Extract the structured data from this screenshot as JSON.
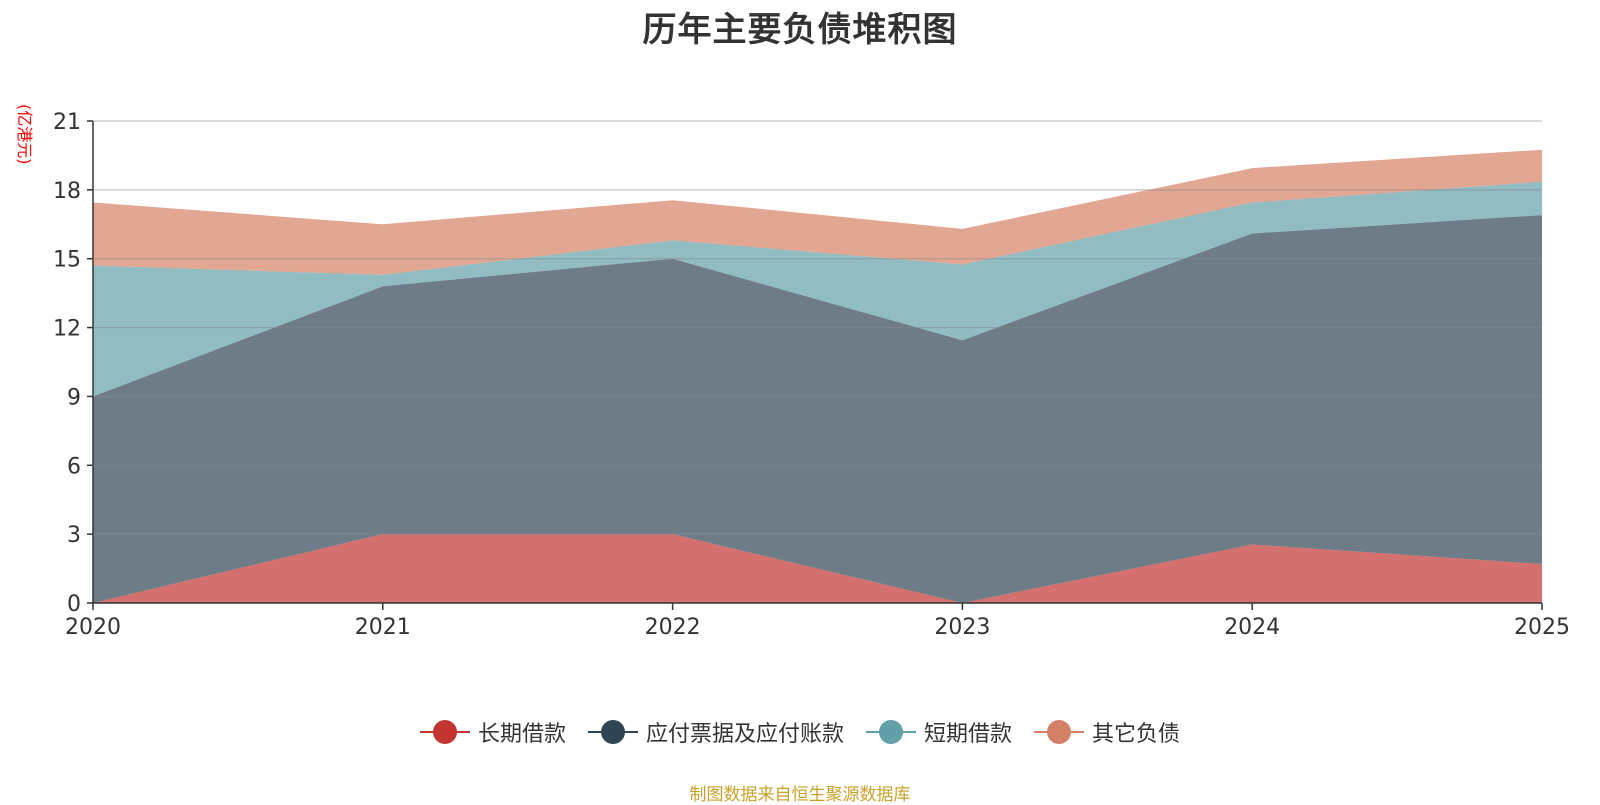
{
  "chart_data": {
    "type": "area",
    "stacked": true,
    "title": "历年主要负债堆积图",
    "y_unit_label": "(亿港元)",
    "categories": [
      "2020",
      "2021",
      "2022",
      "2023",
      "2024",
      "2025"
    ],
    "ylim": [
      0,
      21
    ],
    "yticks": [
      0,
      3,
      6,
      9,
      12,
      15,
      18,
      21
    ],
    "series": [
      {
        "name": "长期借款",
        "color": "#c23531",
        "values": [
          0,
          3.0,
          3.0,
          0,
          2.55,
          1.7
        ]
      },
      {
        "name": "应付票据及应付账款",
        "color": "#2f4554",
        "values": [
          9.0,
          10.8,
          12.0,
          11.45,
          13.55,
          15.2
        ]
      },
      {
        "name": "短期借款",
        "color": "#61a0a8",
        "values": [
          5.7,
          0.5,
          0.8,
          3.3,
          1.35,
          1.45
        ]
      },
      {
        "name": "其它负债",
        "color": "#d48265",
        "values": [
          2.75,
          2.2,
          1.75,
          1.55,
          1.5,
          1.4
        ]
      }
    ],
    "legend_position": "bottom",
    "grid": true
  },
  "footer": {
    "source": "制图数据来自恒生聚源数据库"
  }
}
